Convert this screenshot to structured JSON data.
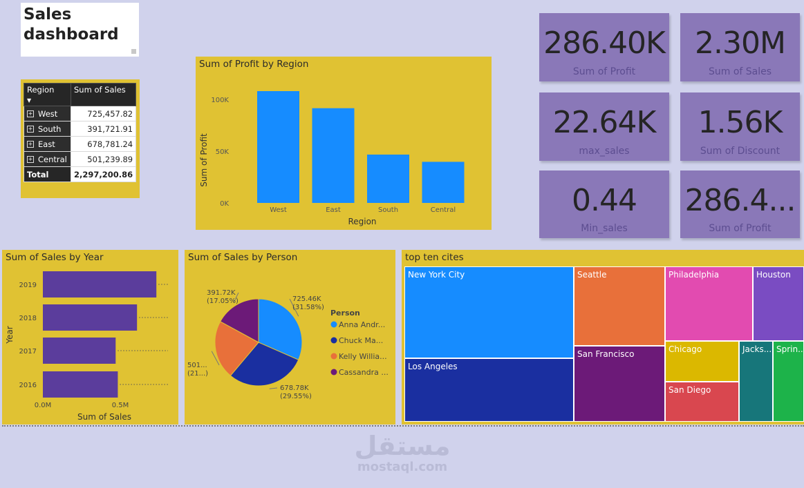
{
  "dashboard": {
    "title": "Sales dashboard"
  },
  "region_table": {
    "headers": [
      "Region",
      "Sum of Sales"
    ],
    "rows": [
      {
        "region": "West",
        "sales": "725,457.82"
      },
      {
        "region": "South",
        "sales": "391,721.91"
      },
      {
        "region": "East",
        "sales": "678,781.24"
      },
      {
        "region": "Central",
        "sales": "501,239.89"
      }
    ],
    "total_label": "Total",
    "total_value": "2,297,200.86"
  },
  "kpis": [
    {
      "value": "286.40K",
      "label": "Sum of Profit"
    },
    {
      "value": "2.30M",
      "label": "Sum of Sales"
    },
    {
      "value": "22.64K",
      "label": "max_sales"
    },
    {
      "value": "1.56K",
      "label": "Sum of Discount"
    },
    {
      "value": "0.44",
      "label": "Min_sales"
    },
    {
      "value": "286.4...",
      "label": "Sum of Profit"
    }
  ],
  "colors": {
    "background": "#d0d2ec",
    "panel": "#e0c233",
    "bar_blue": "#168cff",
    "bar_purple": "#5b3d9c",
    "kpi": "#8a78b8"
  },
  "chart_data": [
    {
      "type": "bar",
      "title": "Sum of Profit by Region",
      "xlabel": "Region",
      "ylabel": "Sum of Profit",
      "categories": [
        "West",
        "East",
        "South",
        "Central"
      ],
      "values": [
        108000,
        91500,
        46700,
        39700
      ],
      "yticks": [
        "0K",
        "50K",
        "100K"
      ],
      "ylim": [
        0,
        110000
      ]
    },
    {
      "type": "bar",
      "orientation": "horizontal",
      "title": "Sum of Sales by Year",
      "xlabel": "Sum of Sales",
      "ylabel": "Year",
      "categories": [
        "2019",
        "2018",
        "2017",
        "2016"
      ],
      "values": [
        733000,
        608000,
        470000,
        484000
      ],
      "xticks": [
        "0.0M",
        "0.5M"
      ],
      "xlim": [
        0,
        750000
      ]
    },
    {
      "type": "pie",
      "title": "Sum of Sales by Person",
      "legend_title": "Person",
      "slices": [
        {
          "name": "Anna Andr...",
          "value": 725460,
          "label": "725.46K",
          "pct": "(31.58%)",
          "color": "#168cff"
        },
        {
          "name": "Chuck Ma...",
          "value": 678780,
          "label": "678.78K",
          "pct": "(29.55%)",
          "color": "#1a2fa0"
        },
        {
          "name": "Kelly Willia...",
          "value": 501240,
          "label": "501...",
          "pct": "(21...)",
          "color": "#e8703a"
        },
        {
          "name": "Cassandra ...",
          "value": 391720,
          "label": "391.72K",
          "pct": "(17.05%)",
          "color": "#6c1a78"
        }
      ]
    },
    {
      "type": "treemap",
      "title": "top ten cites",
      "cells": [
        {
          "name": "New York City",
          "color": "#168cff"
        },
        {
          "name": "Los Angeles",
          "color": "#1a2fa0"
        },
        {
          "name": "Seattle",
          "color": "#e8703a"
        },
        {
          "name": "San Francisco",
          "color": "#6c1a78"
        },
        {
          "name": "Philadelphia",
          "color": "#e24bb0"
        },
        {
          "name": "Chicago",
          "color": "#dbb800"
        },
        {
          "name": "San Diego",
          "color": "#d9474f"
        },
        {
          "name": "Houston",
          "color": "#7a4cc2"
        },
        {
          "name": "Jacks...",
          "color": "#17767a"
        },
        {
          "name": "Sprin...",
          "color": "#1db34a"
        }
      ]
    }
  ],
  "watermark": {
    "arabic": "مستقل",
    "latin": "mostaql.com"
  }
}
